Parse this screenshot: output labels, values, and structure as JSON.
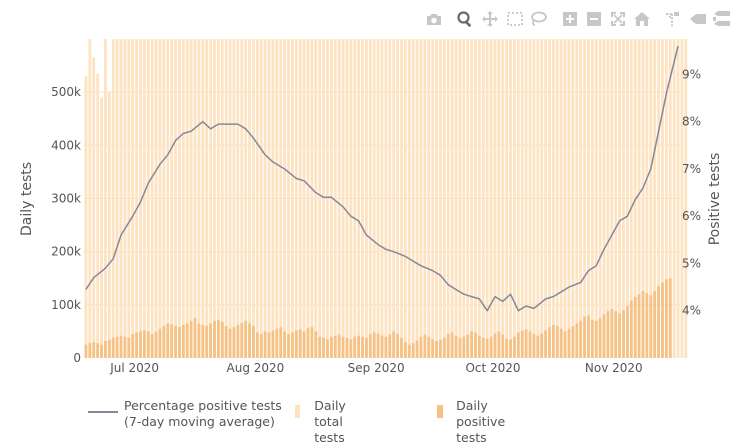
{
  "toolbar": {
    "buttons": [
      {
        "name": "camera-icon",
        "label": "Download plot as a png"
      },
      {
        "name": "zoom-icon",
        "label": "Zoom",
        "active": true
      },
      {
        "name": "pan-icon",
        "label": "Pan"
      },
      {
        "name": "box-select-icon",
        "label": "Box Select"
      },
      {
        "name": "lasso-icon",
        "label": "Lasso Select"
      },
      {
        "name": "zoom-in-icon",
        "label": "Zoom in"
      },
      {
        "name": "zoom-out-icon",
        "label": "Zoom out"
      },
      {
        "name": "autoscale-icon",
        "label": "Autoscale"
      },
      {
        "name": "home-icon",
        "label": "Reset axes"
      },
      {
        "name": "spike-lines-icon",
        "label": "Toggle Spike Lines"
      },
      {
        "name": "hover-closest-icon",
        "label": "Show closest data on hover"
      },
      {
        "name": "hover-compare-icon",
        "label": "Compare data on hover"
      }
    ]
  },
  "colors": {
    "total_bars": "#fde3c2",
    "positive_bars": "#f5c185",
    "line": "#828a98",
    "grid": "#f0e0c8",
    "text": "#555555",
    "toolbar_icon": "#c7c7c7",
    "toolbar_active": "#6a6a6a"
  },
  "chart_data": {
    "type": "bar",
    "x": {
      "start_date": "2020-06-18",
      "end_date": "2020-11-17",
      "tick_labels": [
        "Jul 2020",
        "Aug 2020",
        "Sep 2020",
        "Oct 2020",
        "Nov 2020"
      ],
      "tick_dates": [
        "2020-07-01",
        "2020-08-01",
        "2020-09-01",
        "2020-10-01",
        "2020-11-01"
      ]
    },
    "y_left": {
      "title": "Daily tests",
      "range": [
        0,
        600000
      ],
      "tick_values": [
        0,
        100000,
        200000,
        300000,
        400000,
        500000
      ],
      "tick_labels": [
        "0",
        "100k",
        "200k",
        "300k",
        "400k",
        "500k"
      ]
    },
    "y_right": {
      "title": "Positive tests",
      "range": [
        3.0,
        9.75
      ],
      "tick_values": [
        4,
        5,
        6,
        7,
        8,
        9
      ],
      "tick_labels": [
        "4%",
        "5%",
        "6%",
        "7%",
        "8%",
        "9%"
      ]
    },
    "legend_position": "bottom",
    "series": [
      {
        "name": "Daily total tests",
        "kind": "bar",
        "axis": "left",
        "values": [
          530000,
          600000,
          565000,
          535000,
          490000,
          600000,
          500000,
          600000,
          600000,
          600000,
          600000,
          600000,
          600000,
          600000,
          600000,
          600000,
          600000,
          600000,
          600000,
          600000,
          600000,
          600000,
          600000,
          600000,
          600000,
          600000,
          600000,
          600000,
          600000,
          600000,
          600000,
          600000,
          600000,
          600000,
          600000,
          600000,
          600000,
          600000,
          600000,
          600000,
          600000,
          600000,
          600000,
          600000,
          600000,
          600000,
          600000,
          600000,
          600000,
          600000,
          600000,
          600000,
          600000,
          600000,
          600000,
          600000,
          600000,
          600000,
          600000,
          600000,
          600000,
          600000,
          600000,
          600000,
          600000,
          600000,
          600000,
          600000,
          600000,
          600000,
          600000,
          600000,
          600000,
          600000,
          600000,
          600000,
          600000,
          600000,
          600000,
          600000,
          600000,
          600000,
          600000,
          600000,
          600000,
          600000,
          600000,
          600000,
          600000,
          600000,
          600000,
          600000,
          600000,
          600000,
          600000,
          600000,
          600000,
          600000,
          600000,
          600000,
          600000,
          600000,
          600000,
          600000,
          600000,
          600000,
          600000,
          600000,
          600000,
          600000,
          600000,
          600000,
          600000,
          600000,
          600000,
          600000,
          600000,
          600000,
          600000,
          600000,
          600000,
          600000,
          600000,
          600000,
          600000,
          600000,
          600000,
          600000,
          600000,
          600000,
          600000,
          600000,
          600000,
          600000,
          600000,
          600000,
          600000,
          600000,
          600000,
          600000,
          600000,
          600000,
          600000,
          600000,
          600000,
          600000,
          600000,
          600000,
          600000,
          600000,
          600000,
          600000,
          600000,
          600000,
          600000
        ]
      },
      {
        "name": "Daily positive tests",
        "kind": "bar",
        "axis": "left",
        "values": [
          25000,
          28000,
          30000,
          28000,
          25000,
          32000,
          34000,
          38000,
          40000,
          42000,
          40000,
          38000,
          45000,
          48000,
          50000,
          52000,
          50000,
          45000,
          50000,
          55000,
          60000,
          65000,
          63000,
          60000,
          58000,
          62000,
          65000,
          70000,
          75000,
          65000,
          62000,
          60000,
          65000,
          70000,
          72000,
          68000,
          60000,
          55000,
          58000,
          62000,
          66000,
          70000,
          65000,
          60000,
          48000,
          45000,
          50000,
          48000,
          52000,
          55000,
          58000,
          50000,
          45000,
          48000,
          52000,
          54000,
          50000,
          56000,
          58000,
          50000,
          40000,
          38000,
          35000,
          40000,
          42000,
          44000,
          40000,
          38000,
          35000,
          40000,
          42000,
          40000,
          38000,
          45000,
          48000,
          46000,
          42000,
          40000,
          44000,
          50000,
          45000,
          38000,
          30000,
          25000,
          28000,
          33000,
          40000,
          44000,
          40000,
          35000,
          32000,
          34000,
          38000,
          45000,
          48000,
          42000,
          38000,
          40000,
          44000,
          50000,
          48000,
          42000,
          38000,
          36000,
          40000,
          46000,
          50000,
          44000,
          36000,
          35000,
          40000,
          48000,
          52000,
          54000,
          50000,
          45000,
          42000,
          46000,
          52000,
          58000,
          62000,
          60000,
          55000,
          50000,
          55000,
          60000,
          65000,
          70000,
          78000,
          80000,
          72000,
          70000,
          75000,
          82000,
          88000,
          92000,
          88000,
          84000,
          90000,
          98000,
          108000,
          115000,
          120000,
          126000,
          122000,
          118000,
          126000,
          135000,
          142000,
          148000,
          150000
        ]
      },
      {
        "name": "Percentage positive tests (7-day moving average)",
        "kind": "line",
        "axis": "right",
        "points": [
          [
            "2020-06-18",
            4.45
          ],
          [
            "2020-06-20",
            4.7
          ],
          [
            "2020-06-23",
            4.9
          ],
          [
            "2020-06-25",
            5.1
          ],
          [
            "2020-06-27",
            5.6
          ],
          [
            "2020-06-30",
            6.0
          ],
          [
            "2020-07-02",
            6.3
          ],
          [
            "2020-07-04",
            6.7
          ],
          [
            "2020-07-07",
            7.1
          ],
          [
            "2020-07-09",
            7.3
          ],
          [
            "2020-07-11",
            7.6
          ],
          [
            "2020-07-13",
            7.75
          ],
          [
            "2020-07-15",
            7.8
          ],
          [
            "2020-07-18",
            8.0
          ],
          [
            "2020-07-20",
            7.85
          ],
          [
            "2020-07-22",
            7.95
          ],
          [
            "2020-07-24",
            7.95
          ],
          [
            "2020-07-27",
            7.95
          ],
          [
            "2020-07-29",
            7.85
          ],
          [
            "2020-07-31",
            7.65
          ],
          [
            "2020-08-03",
            7.3
          ],
          [
            "2020-08-05",
            7.15
          ],
          [
            "2020-08-08",
            7.0
          ],
          [
            "2020-08-11",
            6.8
          ],
          [
            "2020-08-13",
            6.75
          ],
          [
            "2020-08-16",
            6.5
          ],
          [
            "2020-08-18",
            6.4
          ],
          [
            "2020-08-20",
            6.4
          ],
          [
            "2020-08-23",
            6.2
          ],
          [
            "2020-08-25",
            6.0
          ],
          [
            "2020-08-27",
            5.9
          ],
          [
            "2020-08-29",
            5.6
          ],
          [
            "2020-09-01",
            5.4
          ],
          [
            "2020-09-03",
            5.3
          ],
          [
            "2020-09-05",
            5.25
          ],
          [
            "2020-09-08",
            5.15
          ],
          [
            "2020-09-10",
            5.05
          ],
          [
            "2020-09-12",
            4.95
          ],
          [
            "2020-09-15",
            4.85
          ],
          [
            "2020-09-17",
            4.75
          ],
          [
            "2020-09-19",
            4.55
          ],
          [
            "2020-09-21",
            4.45
          ],
          [
            "2020-09-23",
            4.35
          ],
          [
            "2020-09-25",
            4.3
          ],
          [
            "2020-09-27",
            4.25
          ],
          [
            "2020-09-29",
            4.0
          ],
          [
            "2020-10-01",
            4.3
          ],
          [
            "2020-10-03",
            4.2
          ],
          [
            "2020-10-05",
            4.35
          ],
          [
            "2020-10-07",
            4.0
          ],
          [
            "2020-10-09",
            4.1
          ],
          [
            "2020-10-11",
            4.05
          ],
          [
            "2020-10-14",
            4.25
          ],
          [
            "2020-10-16",
            4.3
          ],
          [
            "2020-10-18",
            4.4
          ],
          [
            "2020-10-20",
            4.5
          ],
          [
            "2020-10-23",
            4.6
          ],
          [
            "2020-10-25",
            4.85
          ],
          [
            "2020-10-27",
            4.95
          ],
          [
            "2020-10-29",
            5.3
          ],
          [
            "2020-10-31",
            5.6
          ],
          [
            "2020-11-02",
            5.9
          ],
          [
            "2020-11-04",
            6.0
          ],
          [
            "2020-11-06",
            6.35
          ],
          [
            "2020-11-08",
            6.6
          ],
          [
            "2020-11-10",
            7.0
          ],
          [
            "2020-11-12",
            7.8
          ],
          [
            "2020-11-14",
            8.6
          ],
          [
            "2020-11-17",
            9.6
          ]
        ]
      }
    ]
  }
}
